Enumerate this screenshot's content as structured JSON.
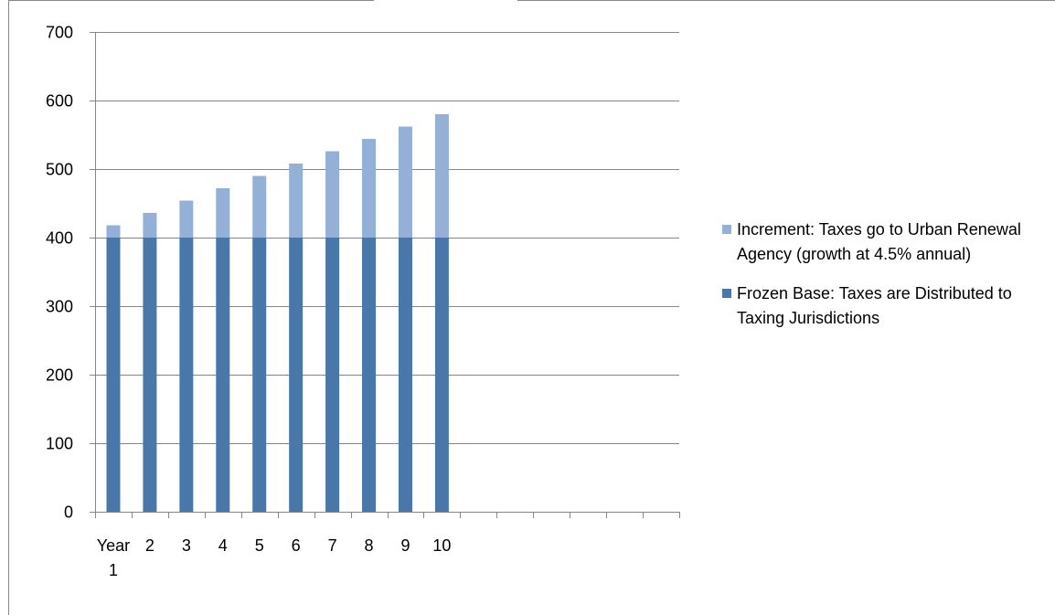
{
  "chart_data": {
    "type": "bar",
    "stacked": true,
    "title": "",
    "xlabel": "",
    "ylabel": "",
    "categories": [
      "Year 1",
      "2",
      "3",
      "4",
      "5",
      "6",
      "7",
      "8",
      "9",
      "10",
      "",
      "",
      "",
      "",
      "",
      ""
    ],
    "series": [
      {
        "name": "Frozen Base: Taxes are Distributed to Taxing Jurisdictions",
        "color": "#4a77aa",
        "values": [
          400,
          400,
          400,
          400,
          400,
          400,
          400,
          400,
          400,
          400,
          null,
          null,
          null,
          null,
          null,
          null
        ]
      },
      {
        "name": "Increment:  Taxes go  to Urban Renewal Agency (growth at 4.5% annual)",
        "color": "#95b0d6",
        "values": [
          18,
          36,
          54,
          72,
          90,
          108,
          126,
          144,
          162,
          180,
          null,
          null,
          null,
          null,
          null,
          null
        ]
      }
    ],
    "ylim": [
      0,
      700
    ],
    "yticks": [
      0,
      100,
      200,
      300,
      400,
      500,
      600,
      700
    ],
    "grid": true,
    "legend_position": "right"
  }
}
